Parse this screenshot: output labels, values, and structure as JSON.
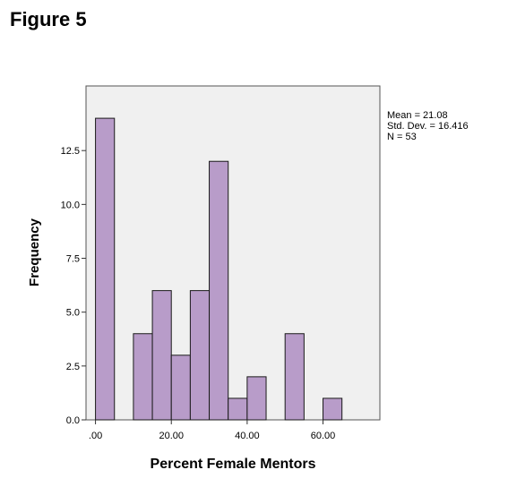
{
  "figure_label": "Figure 5",
  "stats": {
    "mean": "Mean = 21.08",
    "std": "Std. Dev. = 16.416",
    "n": "N = 53"
  },
  "colors": {
    "bar_fill": "#b89cc9",
    "bar_stroke": "#1a1a1a",
    "plot_bg": "#f0f0f0"
  },
  "chart_data": {
    "type": "bar",
    "title": "",
    "xlabel": "Percent Female Mentors",
    "ylabel": "Frequency",
    "xlim": [
      -2.5,
      75
    ],
    "ylim": [
      0,
      15.5
    ],
    "bin_width": 5,
    "bins": [
      {
        "start": 0,
        "value": 14
      },
      {
        "start": 5,
        "value": 0
      },
      {
        "start": 10,
        "value": 4
      },
      {
        "start": 15,
        "value": 6
      },
      {
        "start": 20,
        "value": 3
      },
      {
        "start": 25,
        "value": 6
      },
      {
        "start": 30,
        "value": 12
      },
      {
        "start": 35,
        "value": 1
      },
      {
        "start": 40,
        "value": 2
      },
      {
        "start": 45,
        "value": 0
      },
      {
        "start": 50,
        "value": 4
      },
      {
        "start": 55,
        "value": 0
      },
      {
        "start": 60,
        "value": 1
      }
    ],
    "x_ticks": [
      {
        "value": 0,
        "label": ".00"
      },
      {
        "value": 20,
        "label": "20.00"
      },
      {
        "value": 40,
        "label": "40.00"
      },
      {
        "value": 60,
        "label": "60.00"
      }
    ],
    "y_ticks": [
      {
        "value": 0,
        "label": "0.0"
      },
      {
        "value": 2.5,
        "label": "2.5"
      },
      {
        "value": 5,
        "label": "5.0"
      },
      {
        "value": 7.5,
        "label": "7.5"
      },
      {
        "value": 10,
        "label": "10.0"
      },
      {
        "value": 12.5,
        "label": "12.5"
      }
    ],
    "grid": false,
    "legend": "none"
  }
}
